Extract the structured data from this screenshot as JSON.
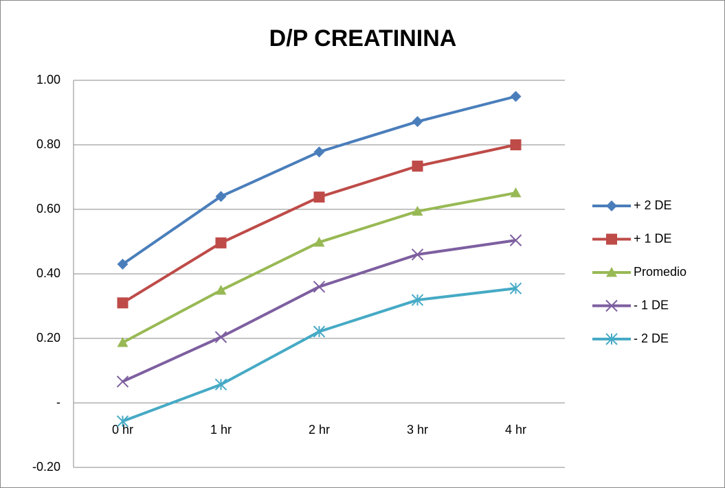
{
  "chart_data": {
    "type": "line",
    "title": "D/P CREATININA",
    "categories": [
      "0 hr",
      "1 hr",
      "2 hr",
      "3 hr",
      "4 hr"
    ],
    "series": [
      {
        "name": "+ 2 DE",
        "color": "#4a7ebb",
        "marker": "diamond",
        "values": [
          0.43,
          0.64,
          0.778,
          0.872,
          0.95
        ]
      },
      {
        "name": "+ 1 DE",
        "color": "#be4b48",
        "marker": "square",
        "values": [
          0.31,
          0.496,
          0.638,
          0.734,
          0.8
        ]
      },
      {
        "name": "Promedio",
        "color": "#98b954",
        "marker": "triangle",
        "values": [
          0.187,
          0.349,
          0.498,
          0.594,
          0.651
        ]
      },
      {
        "name": "- 1 DE",
        "color": "#7d5fa0",
        "marker": "x",
        "values": [
          0.066,
          0.204,
          0.36,
          0.46,
          0.504
        ]
      },
      {
        "name": "- 2 DE",
        "color": "#46aac5",
        "marker": "star",
        "values": [
          -0.057,
          0.057,
          0.221,
          0.319,
          0.355
        ]
      }
    ],
    "ylim": [
      -0.2,
      1
    ],
    "yticks": [
      {
        "value": -0.2,
        "label": "-0.20"
      },
      {
        "value": 0,
        "label": "-"
      },
      {
        "value": 0.2,
        "label": "0.20"
      },
      {
        "value": 0.4,
        "label": "0.40"
      },
      {
        "value": 0.6,
        "label": "0.60"
      },
      {
        "value": 0.8,
        "label": "0.80"
      },
      {
        "value": 1,
        "label": "1.00"
      }
    ],
    "grid": true,
    "legend": "right"
  }
}
